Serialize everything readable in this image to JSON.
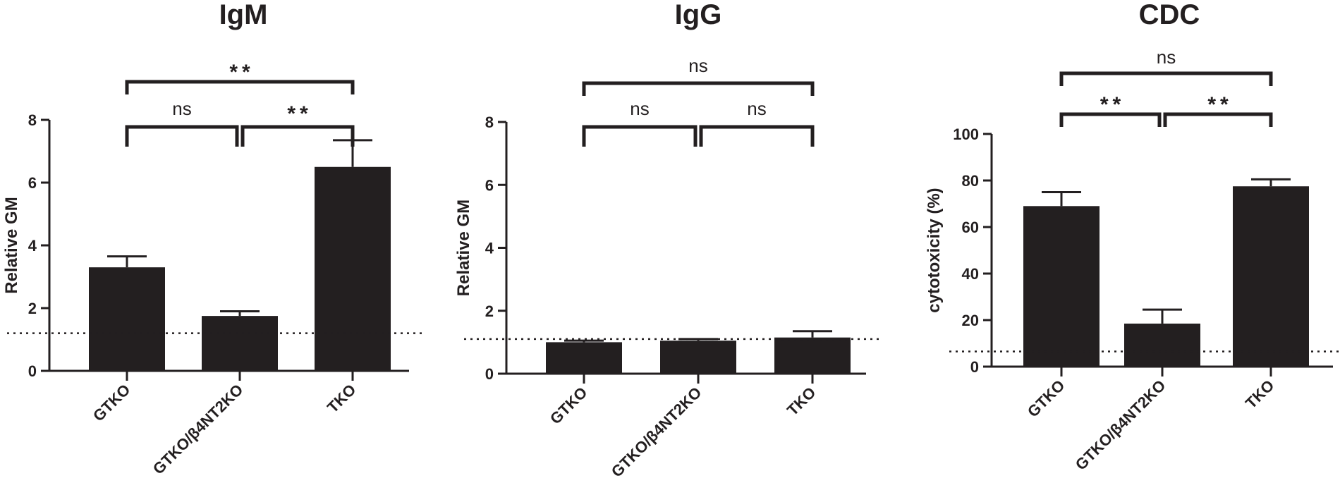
{
  "chart_data": [
    {
      "type": "bar",
      "title": "IgM",
      "ylabel": "Relative GM",
      "xlabel": "",
      "categories": [
        "GTKO",
        "GTKO/β4NT2KO",
        "TKO"
      ],
      "values": [
        3.3,
        1.75,
        6.5
      ],
      "errors": [
        0.35,
        0.15,
        0.85
      ],
      "ylim": [
        0,
        8
      ],
      "yticks": [
        "0",
        "2",
        "4",
        "6",
        "8"
      ],
      "baseline": 1.2,
      "comparisons": [
        {
          "from": 0,
          "to": 1,
          "label": "ns"
        },
        {
          "from": 1,
          "to": 2,
          "label": "**"
        },
        {
          "from": 0,
          "to": 2,
          "label": "**"
        }
      ]
    },
    {
      "type": "bar",
      "title": "IgG",
      "ylabel": "Relative GM",
      "xlabel": "",
      "categories": [
        "GTKO",
        "GTKO/β4NT2KO",
        "TKO"
      ],
      "values": [
        1.0,
        1.05,
        1.15
      ],
      "errors": [
        0.05,
        0.05,
        0.2
      ],
      "ylim": [
        0,
        8
      ],
      "yticks": [
        "0",
        "2",
        "4",
        "6",
        "8"
      ],
      "baseline": 1.1,
      "comparisons": [
        {
          "from": 0,
          "to": 1,
          "label": "ns"
        },
        {
          "from": 1,
          "to": 2,
          "label": "ns"
        },
        {
          "from": 0,
          "to": 2,
          "label": "ns"
        }
      ]
    },
    {
      "type": "bar",
      "title": "CDC",
      "ylabel": "cytotoxicity (%)",
      "xlabel": "",
      "categories": [
        "GTKO",
        "GTKO/β4NT2KO",
        "TKO"
      ],
      "values": [
        69,
        18.5,
        77.5
      ],
      "errors": [
        6,
        6,
        3
      ],
      "ylim": [
        0,
        100
      ],
      "yticks": [
        "0",
        "20",
        "40",
        "60",
        "80",
        "100"
      ],
      "baseline": 6.5,
      "comparisons": [
        {
          "from": 0,
          "to": 1,
          "label": "**"
        },
        {
          "from": 1,
          "to": 2,
          "label": "**"
        },
        {
          "from": 0,
          "to": 2,
          "label": "ns"
        }
      ]
    }
  ],
  "colors": {
    "bar": "#231f20",
    "axis": "#231f20",
    "text": "#231f20"
  }
}
